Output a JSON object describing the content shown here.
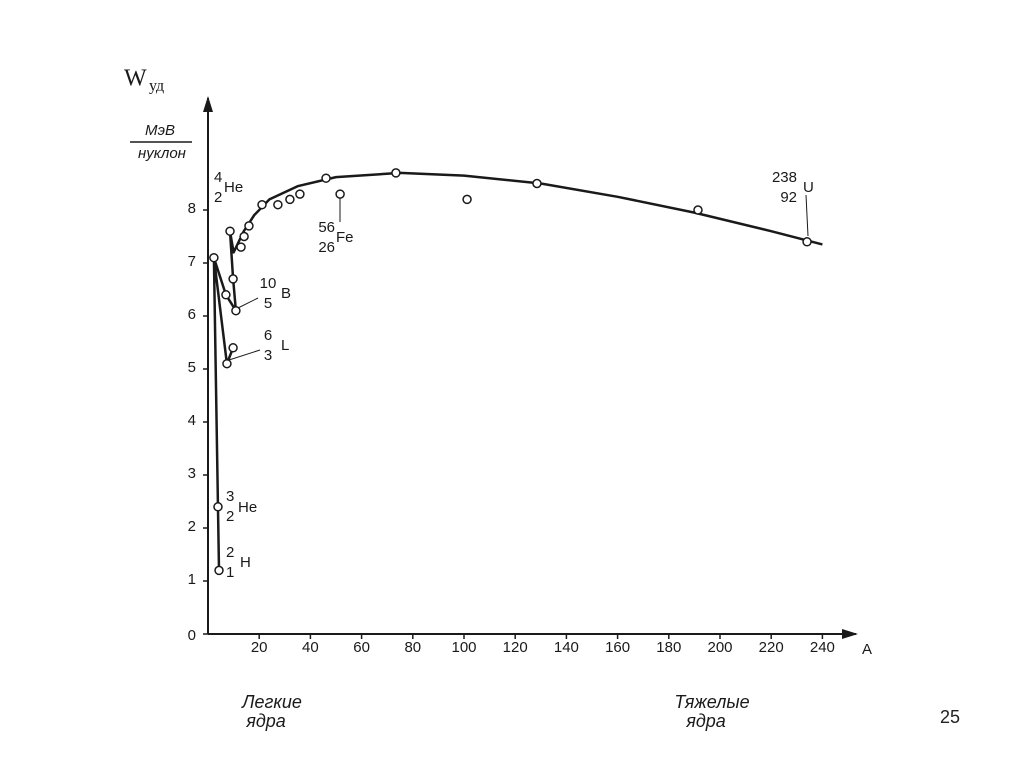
{
  "chart_data": {
    "type": "scatter",
    "y_label": "W",
    "y_label_sub": "уд",
    "y_unit_top": "МэВ",
    "y_unit_bottom": "нуклон",
    "x_label": "A",
    "xlim": [
      0,
      250
    ],
    "ylim": [
      0,
      10
    ],
    "xticks": [
      20,
      40,
      60,
      80,
      100,
      120,
      140,
      160,
      180,
      200,
      220,
      240
    ],
    "yticks": [
      0,
      1,
      2,
      3,
      4,
      5,
      6,
      7,
      8
    ],
    "color": "#1a1a1a",
    "series": [
      {
        "x": [
          4.3,
          3.9,
          2.3,
          7.0,
          7.4,
          9.8,
          10.9,
          9.8,
          8.6,
          12.9,
          14.1,
          16.0,
          21.1,
          27.3,
          32.0,
          35.9,
          46.1,
          51.6,
          73.4,
          101.2,
          128.5,
          191.4,
          234.0
        ],
        "values": [
          1.2,
          2.4,
          7.1,
          6.4,
          5.1,
          5.4,
          6.1,
          6.7,
          7.6,
          7.3,
          7.5,
          7.7,
          8.1,
          8.1,
          8.2,
          8.3,
          8.6,
          8.3,
          8.7,
          8.2,
          8.5,
          8.0,
          7.4
        ]
      },
      {
        "x": [
          4.3,
          2.3,
          7.4,
          9.8,
          null,
          2.3,
          7.0,
          10.9,
          9.8,
          8.6,
          null,
          8.6,
          10.0,
          14.0,
          18.0,
          24.0,
          35.0,
          50.0,
          75.0,
          100.0,
          130.0,
          160.0,
          190.0,
          220.0,
          240.0
        ],
        "values": [
          1.2,
          7.1,
          5.1,
          5.4,
          null,
          7.1,
          6.4,
          6.1,
          6.7,
          7.6,
          null,
          7.6,
          7.2,
          7.6,
          7.9,
          8.2,
          8.45,
          8.62,
          8.7,
          8.65,
          8.5,
          8.25,
          7.95,
          7.6,
          7.35
        ]
      }
    ],
    "annotations": [
      {
        "mass": "4",
        "charge": "2",
        "symbol": "He"
      },
      {
        "mass": "3",
        "charge": "2",
        "symbol": "He"
      },
      {
        "mass": "2",
        "charge": "1",
        "symbol": "H"
      },
      {
        "mass": "56",
        "charge": "26",
        "symbol": "Fe"
      },
      {
        "mass": "238",
        "charge": "92",
        "symbol": "U"
      },
      {
        "mass": "10",
        "charge": "5",
        "symbol": "B"
      },
      {
        "mass": "6",
        "charge": "3",
        "symbol": "L"
      }
    ],
    "region_labels": [
      {
        "line1": "Легкие",
        "line2": "ядра"
      },
      {
        "line1": "Тяжелые",
        "line2": "ядра"
      }
    ]
  },
  "page_number": "25"
}
